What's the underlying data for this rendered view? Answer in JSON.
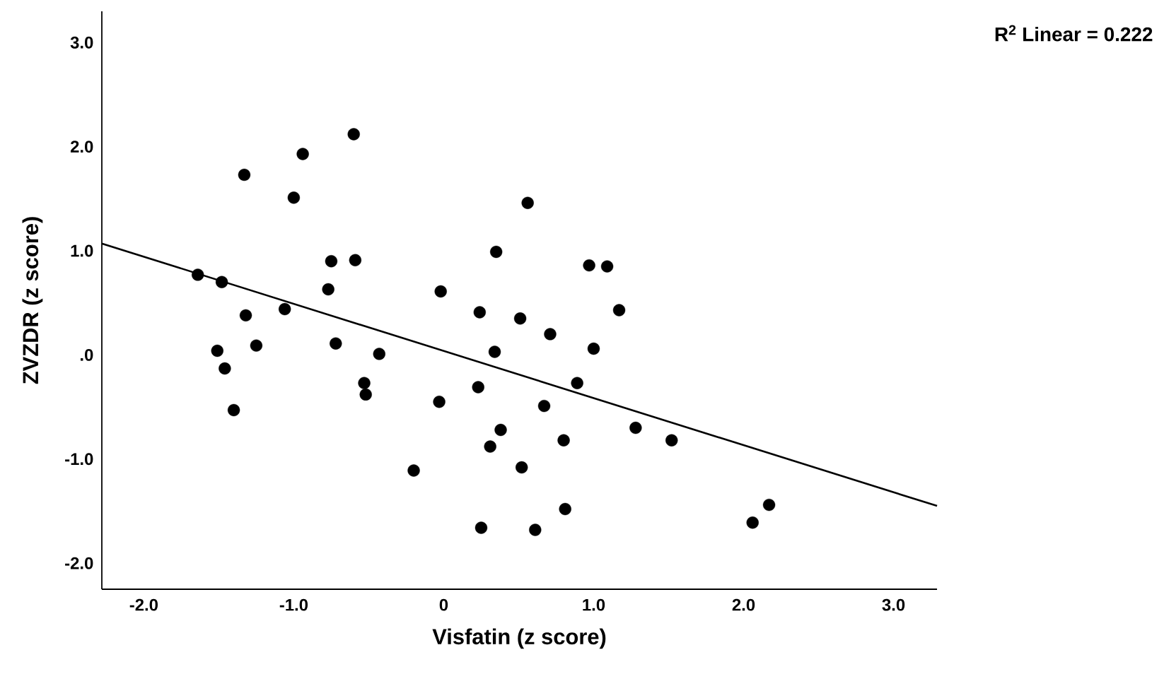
{
  "chart_data": {
    "type": "scatter",
    "xlabel": "Visfatin (z score)",
    "ylabel": "ZVZDR (z score)",
    "xlim": [
      -2.28,
      3.29
    ],
    "ylim": [
      -2.25,
      3.3
    ],
    "xticks": [
      {
        "value": -2,
        "label": "-2.0"
      },
      {
        "value": -1,
        "label": "-1.0"
      },
      0,
      {
        "value": 1,
        "label": "1.0"
      },
      {
        "value": 2,
        "label": "2.0"
      },
      {
        "value": 3,
        "label": "3.0"
      }
    ],
    "yticks": [
      {
        "value": -2,
        "label": "-2.0"
      },
      {
        "value": -1,
        "label": "-1.0"
      },
      {
        "value": 0,
        "label": ".0"
      },
      {
        "value": 1,
        "label": "1.0"
      },
      {
        "value": 2,
        "label": "2.0"
      },
      {
        "value": 3,
        "label": "3.0"
      }
    ],
    "grid": false,
    "annotations": [
      "R$^{2}$ Linear = 0.222"
    ],
    "series": [
      {
        "color": "#000000",
        "marker": "circle",
        "x": [
          -1.64,
          -1.48,
          -1.33,
          -1.32,
          -1.51,
          -1.46,
          -1.4,
          -1.25,
          -1.06,
          -1.0,
          -0.94,
          -0.75,
          -0.77,
          -0.72,
          -0.59,
          -0.6,
          -0.53,
          -0.52,
          -0.43,
          -0.2,
          -0.02,
          -0.03,
          0.24,
          0.23,
          0.25,
          0.31,
          0.34,
          0.35,
          0.38,
          0.51,
          0.52,
          0.56,
          0.61,
          0.67,
          0.71,
          0.8,
          0.81,
          0.89,
          0.97,
          1.09,
          1.0,
          1.17,
          1.28,
          1.52,
          2.06,
          2.17
        ],
        "values": [
          0.77,
          0.7,
          1.73,
          0.38,
          0.04,
          -0.13,
          -0.53,
          0.09,
          0.44,
          1.51,
          1.93,
          0.9,
          0.63,
          0.11,
          0.91,
          2.12,
          -0.27,
          -0.38,
          0.01,
          -1.11,
          0.61,
          -0.45,
          0.41,
          -0.31,
          -1.66,
          -0.88,
          0.03,
          0.99,
          -0.72,
          0.35,
          -1.08,
          1.46,
          -1.68,
          -0.49,
          0.2,
          -0.82,
          -1.48,
          -0.27,
          0.86,
          0.85,
          0.06,
          0.43,
          -0.7,
          -0.82,
          -1.61,
          -1.44
        ]
      },
      {
        "type": "line",
        "color": "#000000",
        "marker": "none",
        "line_style": "solid",
        "x": [
          -2.28,
          3.29
        ],
        "values": [
          1.07,
          -1.45
        ]
      }
    ]
  }
}
